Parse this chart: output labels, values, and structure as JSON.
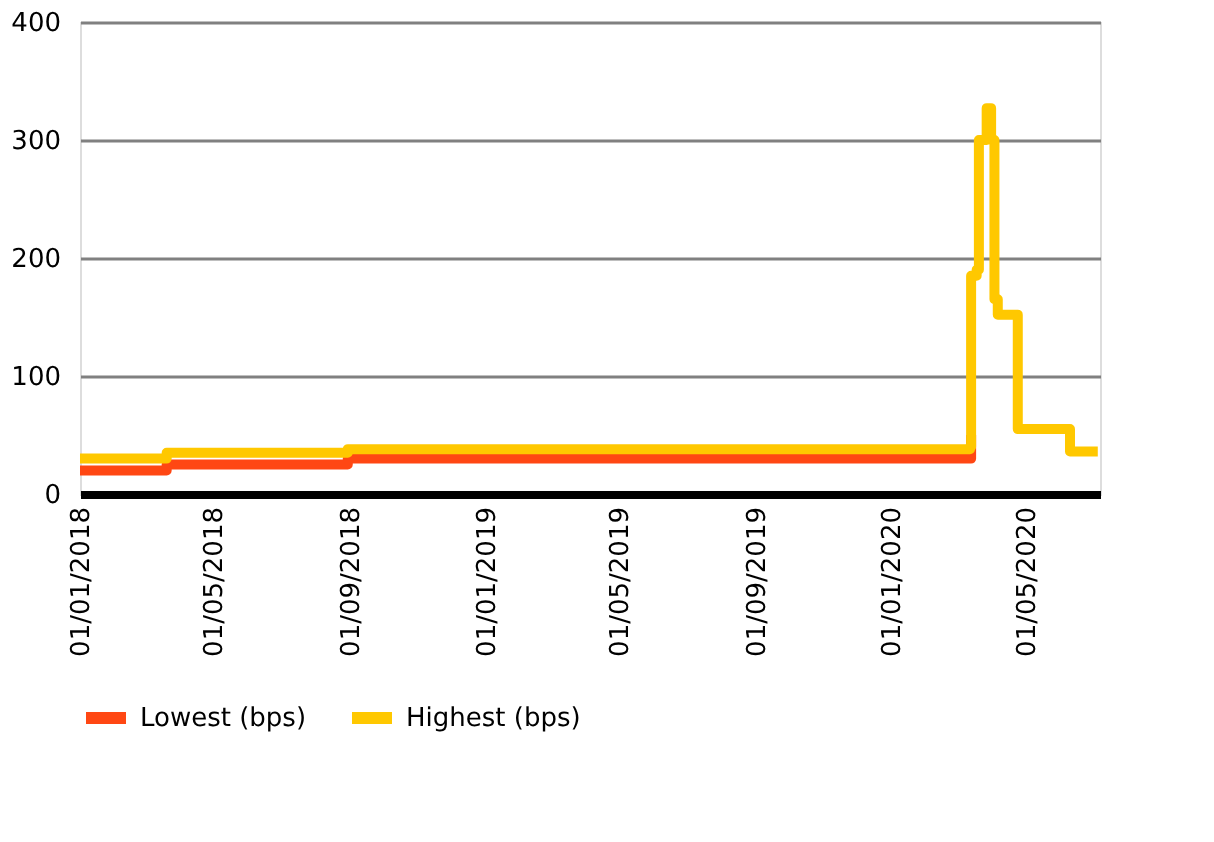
{
  "chart_data": {
    "type": "step",
    "xlim": [
      "2018-01-01",
      "2020-07-07"
    ],
    "ylim": [
      0,
      400
    ],
    "yticks": [
      0,
      100,
      200,
      300,
      400
    ],
    "xticks": [
      {
        "value": "2018-01-01",
        "label": "01/01/2018"
      },
      {
        "value": "2018-05-01",
        "label": "01/05/2018"
      },
      {
        "value": "2018-09-01",
        "label": "01/09/2018"
      },
      {
        "value": "2019-01-01",
        "label": "01/01/2019"
      },
      {
        "value": "2019-05-01",
        "label": "01/05/2019"
      },
      {
        "value": "2019-09-01",
        "label": "01/09/2019"
      },
      {
        "value": "2020-01-01",
        "label": "01/01/2020"
      },
      {
        "value": "2020-05-01",
        "label": "01/05/2020"
      }
    ],
    "grid": "y",
    "legend": "bottom",
    "line_style": "solid",
    "series": [
      {
        "name": "Lowest (bps)",
        "color": "#ff4713",
        "x": [
          "2018-01-01",
          "2018-03-20",
          "2018-08-30",
          "2020-03-10",
          "2020-03-13"
        ],
        "values": [
          20,
          25,
          30,
          30,
          50
        ]
      },
      {
        "name": "Highest (bps)",
        "color": "#ffc800",
        "x": [
          "2018-01-01",
          "2018-03-20",
          "2018-08-30",
          "2020-03-12",
          "2020-03-13",
          "2020-03-18",
          "2020-03-20",
          "2020-03-27",
          "2020-03-31",
          "2020-04-03",
          "2020-04-06",
          "2020-04-24",
          "2020-06-10",
          "2020-07-05"
        ],
        "values": [
          30,
          35,
          38,
          40,
          185,
          190,
          300,
          327,
          300,
          165,
          152,
          55,
          36,
          36
        ]
      }
    ]
  }
}
